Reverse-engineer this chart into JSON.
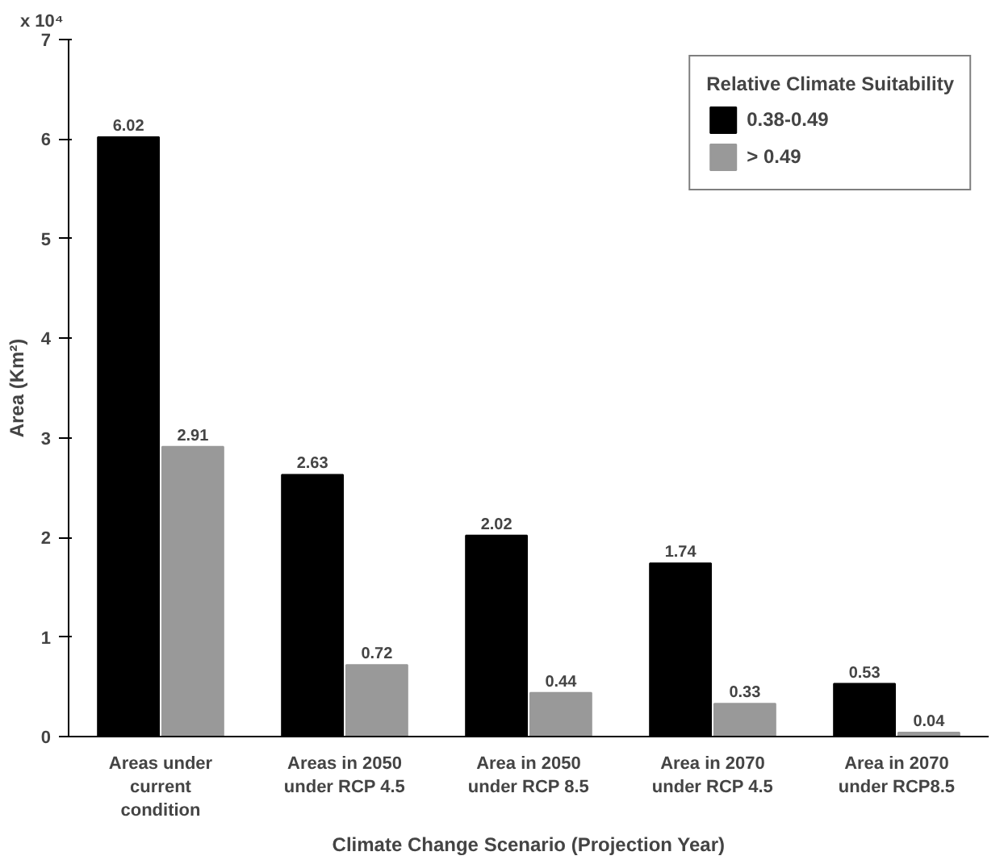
{
  "chart_data": {
    "type": "bar",
    "xlabel": "Climate Change Scenario (Projection Year)",
    "ylabel": "Area (Km²)",
    "legend_title": "Relative Climate Suitability",
    "categories": [
      "Areas under\ncurrent\ncondition",
      "Areas in 2050\nunder RCP 4.5",
      "Area in 2050\nunder RCP 8.5",
      "Area in 2070\nunder RCP 4.5",
      "Area in 2070\nunder RCP8.5"
    ],
    "series": [
      {
        "name": "0.38-0.49",
        "color": "#000000",
        "values": [
          6.02,
          2.63,
          2.02,
          1.74,
          0.53
        ]
      },
      {
        "name": "> 0.49",
        "color": "#999999",
        "values": [
          2.91,
          0.72,
          0.44,
          0.33,
          0.04
        ]
      }
    ],
    "ylim": [
      0,
      7
    ],
    "yticks": [
      0,
      1,
      2,
      3,
      4,
      5,
      6,
      7
    ],
    "annotations": [
      "x 10⁴"
    ],
    "data_labels": true,
    "legend": "top right",
    "grid": false
  }
}
